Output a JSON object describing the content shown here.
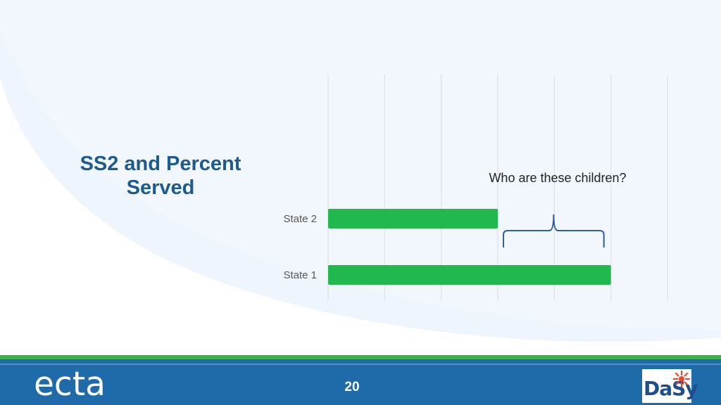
{
  "slide": {
    "title": "SS2 and Percent Served",
    "page_number": "20"
  },
  "chart_data": {
    "type": "bar",
    "orientation": "horizontal",
    "categories": [
      "State 2",
      "State 1"
    ],
    "values": [
      3,
      5
    ],
    "xlim": [
      0,
      6
    ],
    "grid": true,
    "bar_color": "#21b84e",
    "annotation": "Who are these children?"
  },
  "colors": {
    "title": "#1d5b8e",
    "footer_blue": "#1f6aa8",
    "footer_green": "#3cb04a",
    "brace": "#2e5fa3"
  },
  "logos": {
    "left": "ecta",
    "right": "DaSy"
  }
}
